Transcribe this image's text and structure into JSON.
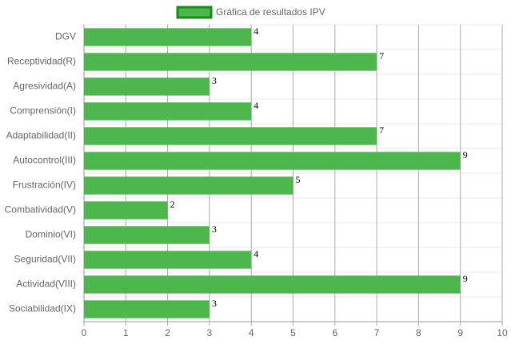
{
  "chart_data": {
    "type": "bar",
    "orientation": "horizontal",
    "categories": [
      "DGV",
      "Receptividad(R)",
      "Agresividad(A)",
      "Comprensión(I)",
      "Adaptabilidad(II)",
      "Autocontrol(III)",
      "Frustración(IV)",
      "Combatividad(V)",
      "Dominio(VI)",
      "Seguridad(VII)",
      "Actividad(VIII)",
      "Sociabilidad(IX)"
    ],
    "series": [
      {
        "name": "Gráfica de resultados IPV",
        "color": "#4db64d",
        "border_color": "#1a8a1a",
        "values": [
          4,
          7,
          3,
          4,
          7,
          9,
          5,
          2,
          3,
          4,
          9,
          3
        ]
      }
    ],
    "xlim": [
      0,
      10
    ],
    "xticks": [
      0,
      1,
      2,
      3,
      4,
      5,
      6,
      7,
      8,
      9,
      10
    ],
    "grid": true,
    "legend": "top"
  }
}
